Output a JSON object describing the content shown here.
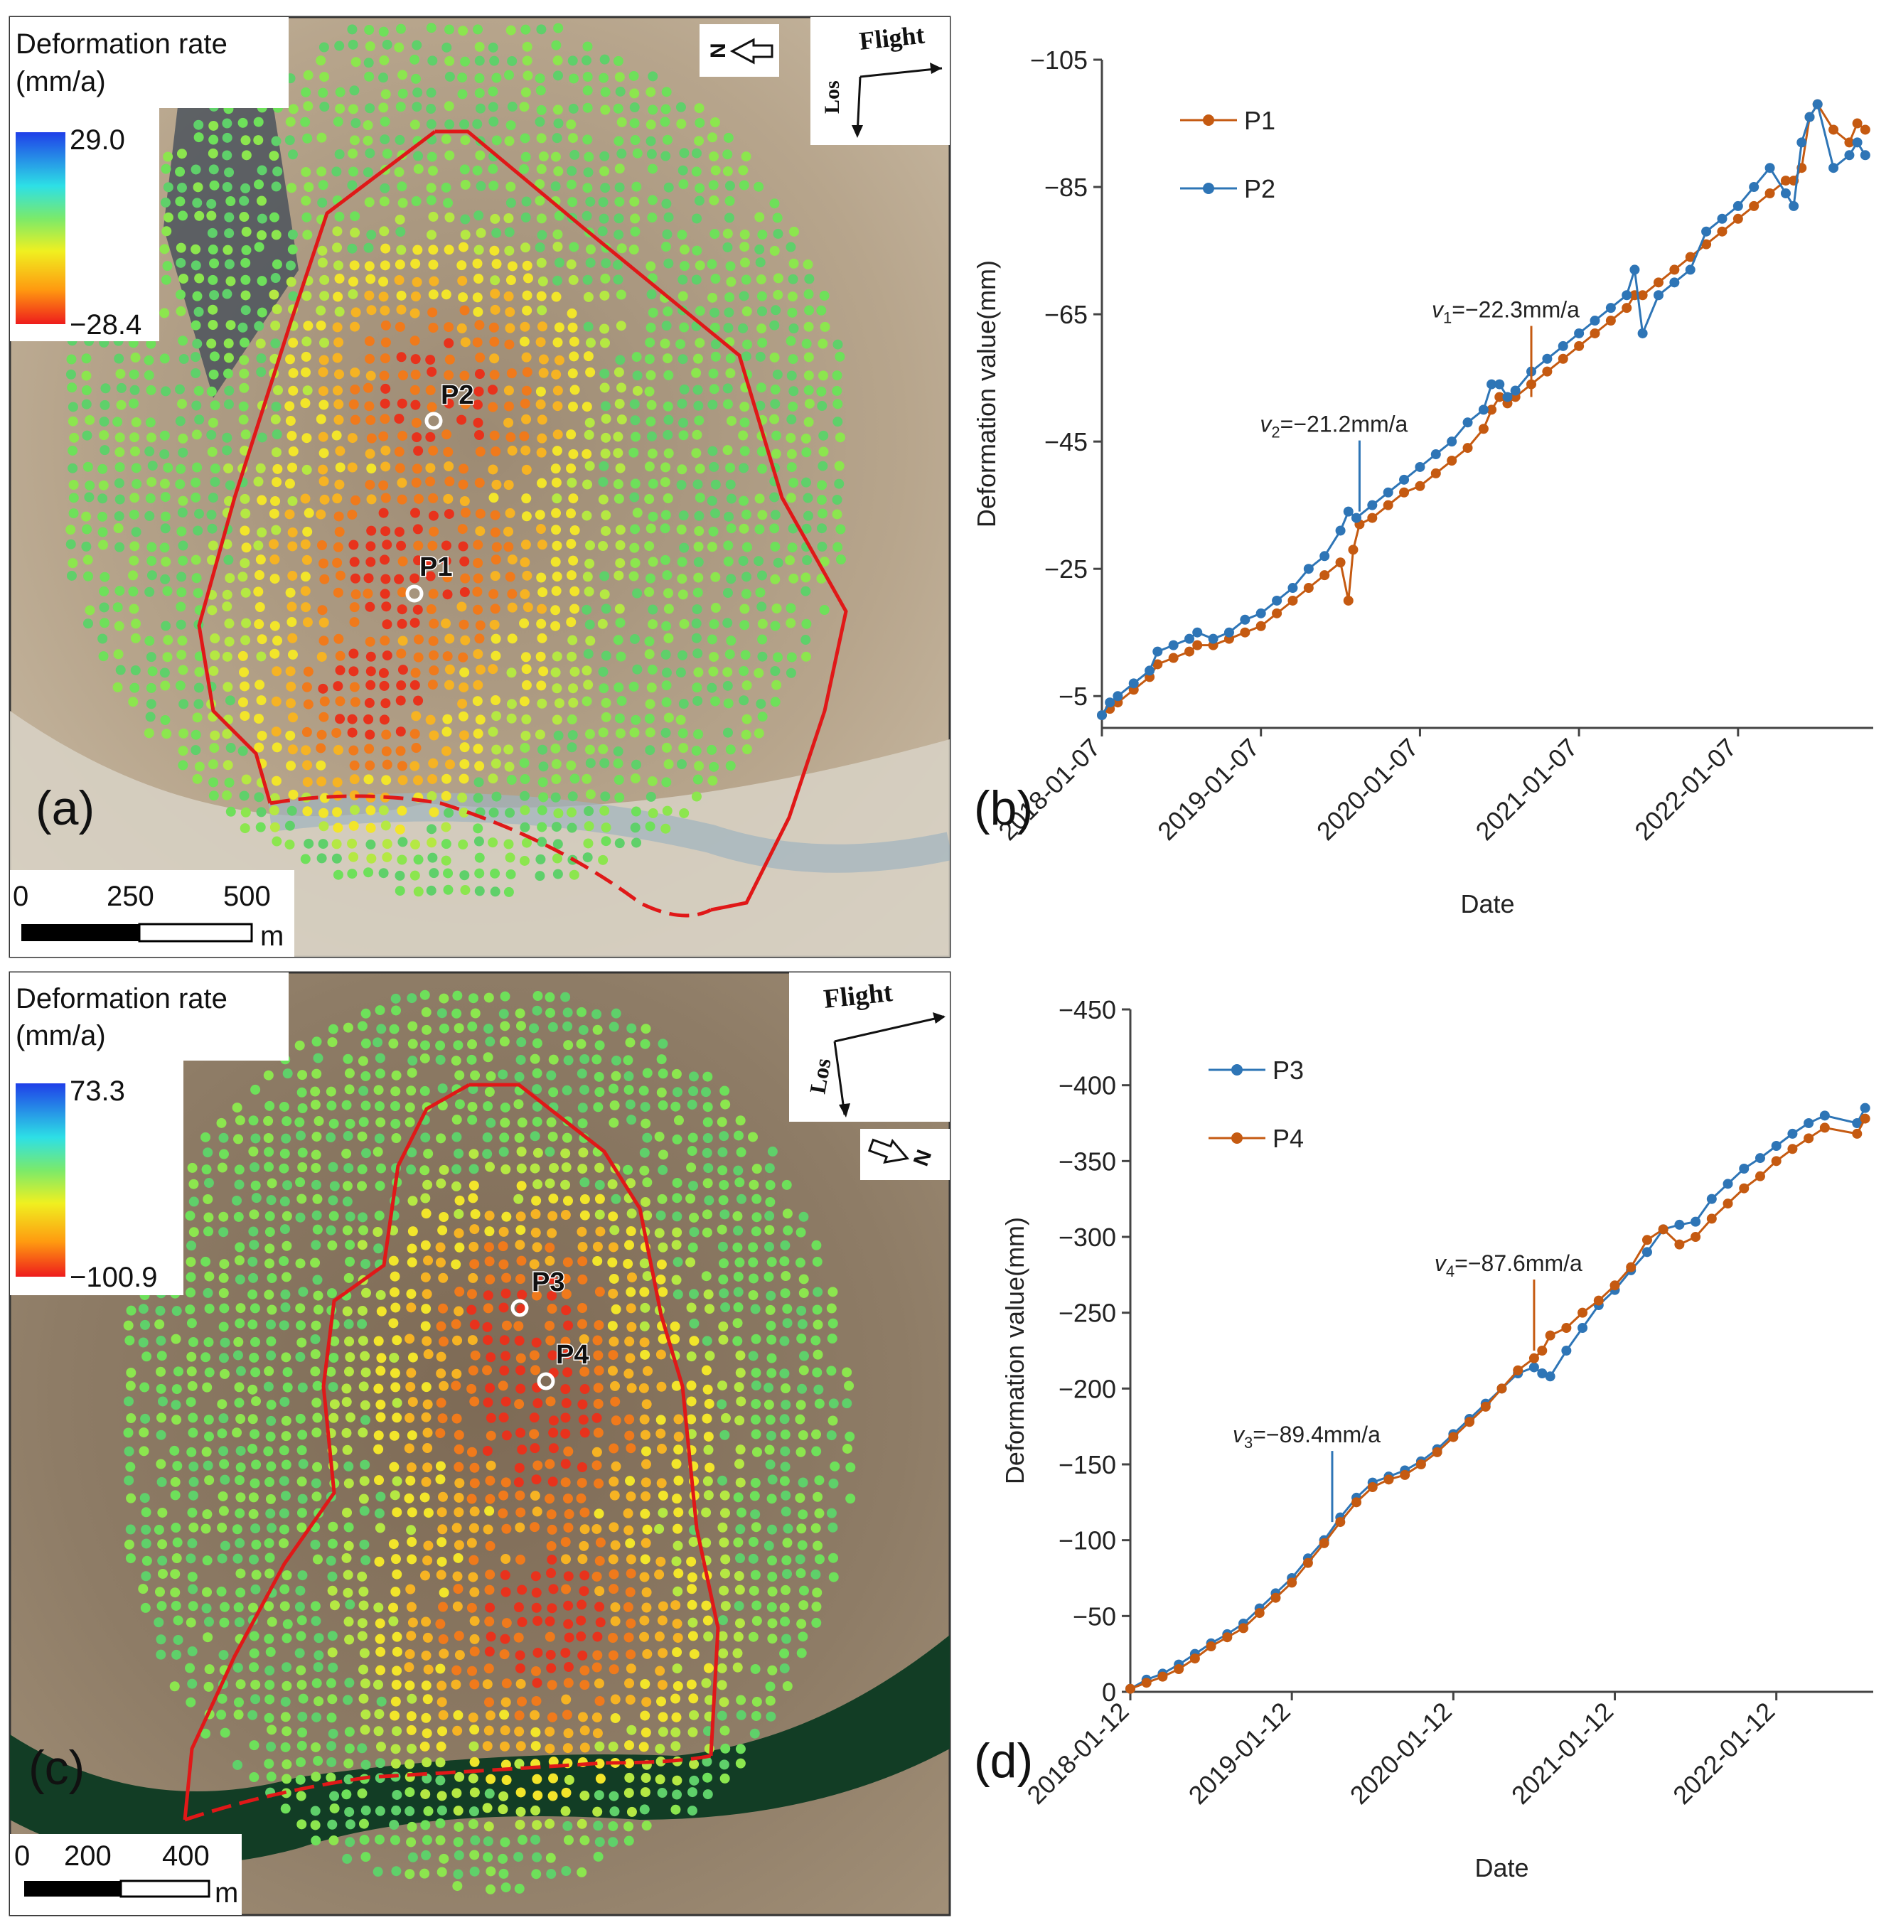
{
  "colors": {
    "p1": "#c55a11",
    "p2": "#2e75b6",
    "p3": "#2e75b6",
    "p4": "#c55a11",
    "boundary": "#e01818",
    "cb_top": "#1f3fe8",
    "cb_mid1": "#2de0e6",
    "cb_mid2": "#7bea6a",
    "cb_mid3": "#f0f020",
    "cb_mid4": "#ff9a10",
    "cb_bottom": "#ee1c1c"
  },
  "panel_a": {
    "label": "(a)",
    "legend_title_1": "Deformation rate",
    "legend_title_2": "(mm/a)",
    "cb_max": "29.0",
    "cb_min": "−28.4",
    "flight_label": "Flight",
    "los_label": "Los",
    "north": "N",
    "scale_0": "0",
    "scale_1": "250",
    "scale_2": "500",
    "scale_unit": "m",
    "point_labels": [
      "P2",
      "P1"
    ]
  },
  "panel_c": {
    "label": "(c)",
    "legend_title_1": "Deformation rate",
    "legend_title_2": "(mm/a)",
    "cb_max": "73.3",
    "cb_min": "−100.9",
    "flight_label": "Flight",
    "los_label": "Los",
    "north": "N",
    "scale_0": "0",
    "scale_1": "200",
    "scale_2": "400",
    "scale_unit": "m",
    "point_labels": [
      "P3",
      "P4"
    ]
  },
  "chart_data": [
    {
      "panel": "(b)",
      "type": "line",
      "xlabel": "Date",
      "ylabel": "Deformation value(mm)",
      "ylim": [
        0,
        -105
      ],
      "yticks": [
        -105,
        -85,
        -65,
        -45,
        -25,
        -5
      ],
      "xticks": [
        "2018-01-07",
        "2019-01-07",
        "2020-01-07",
        "2021-01-07",
        "2022-01-07"
      ],
      "xrange": [
        2018.0,
        2022.85
      ],
      "series": [
        {
          "name": "P1",
          "x": [
            2018.0,
            2018.05,
            2018.1,
            2018.2,
            2018.3,
            2018.35,
            2018.45,
            2018.55,
            2018.6,
            2018.7,
            2018.8,
            2018.9,
            2019.0,
            2019.1,
            2019.2,
            2019.3,
            2019.4,
            2019.5,
            2019.55,
            2019.58,
            2019.62,
            2019.7,
            2019.8,
            2019.9,
            2020.0,
            2020.1,
            2020.2,
            2020.3,
            2020.4,
            2020.45,
            2020.5,
            2020.55,
            2020.6,
            2020.7,
            2020.8,
            2020.9,
            2021.0,
            2021.1,
            2021.2,
            2021.3,
            2021.35,
            2021.4,
            2021.5,
            2021.6,
            2021.7,
            2021.8,
            2021.9,
            2022.0,
            2022.1,
            2022.2,
            2022.3,
            2022.35,
            2022.4,
            2022.45,
            2022.5,
            2022.6,
            2022.7,
            2022.75,
            2022.8
          ],
          "values": [
            -2,
            -3,
            -4,
            -6,
            -8,
            -10,
            -11,
            -12,
            -13,
            -13,
            -14,
            -15,
            -16,
            -18,
            -20,
            -22,
            -24,
            -26,
            -20,
            -28,
            -32,
            -33,
            -35,
            -37,
            -38,
            -40,
            -42,
            -44,
            -47,
            -50,
            -52,
            -51,
            -52,
            -54,
            -56,
            -58,
            -60,
            -62,
            -64,
            -66,
            -68,
            -68,
            -70,
            -72,
            -74,
            -76,
            -78,
            -80,
            -82,
            -84,
            -86,
            -86,
            -88,
            -96,
            -98,
            -94,
            -92,
            -95,
            -94
          ]
        },
        {
          "name": "P2",
          "x": [
            2018.0,
            2018.05,
            2018.1,
            2018.2,
            2018.3,
            2018.35,
            2018.45,
            2018.55,
            2018.6,
            2018.7,
            2018.8,
            2018.9,
            2019.0,
            2019.1,
            2019.2,
            2019.3,
            2019.4,
            2019.5,
            2019.55,
            2019.6,
            2019.7,
            2019.8,
            2019.9,
            2020.0,
            2020.1,
            2020.2,
            2020.3,
            2020.4,
            2020.45,
            2020.5,
            2020.55,
            2020.6,
            2020.7,
            2020.8,
            2020.9,
            2021.0,
            2021.1,
            2021.2,
            2021.3,
            2021.35,
            2021.4,
            2021.5,
            2021.6,
            2021.7,
            2021.8,
            2021.9,
            2022.0,
            2022.1,
            2022.2,
            2022.3,
            2022.35,
            2022.4,
            2022.45,
            2022.5,
            2022.6,
            2022.7,
            2022.75,
            2022.8
          ],
          "values": [
            -2,
            -4,
            -5,
            -7,
            -9,
            -12,
            -13,
            -14,
            -15,
            -14,
            -15,
            -17,
            -18,
            -20,
            -22,
            -25,
            -27,
            -31,
            -34,
            -33,
            -35,
            -37,
            -39,
            -41,
            -43,
            -45,
            -48,
            -50,
            -54,
            -54,
            -52,
            -53,
            -56,
            -58,
            -60,
            -62,
            -64,
            -66,
            -68,
            -72,
            -62,
            -68,
            -70,
            -72,
            -78,
            -80,
            -82,
            -85,
            -88,
            -84,
            -82,
            -92,
            -96,
            -98,
            -88,
            -90,
            -92,
            -90
          ]
        }
      ],
      "annotations": [
        {
          "text_italic": "v",
          "sub": "1",
          "text": "=−22.3mm/a",
          "x": 2020.7,
          "y": -52
        },
        {
          "text_italic": "v",
          "sub": "2",
          "text": "=−21.2mm/a",
          "x": 2019.62,
          "y": -34
        }
      ]
    },
    {
      "panel": "(d)",
      "type": "line",
      "xlabel": "Date",
      "ylabel": "Deformation value(mm)",
      "ylim": [
        0,
        -450
      ],
      "yticks": [
        -450,
        -400,
        -350,
        -300,
        -250,
        -200,
        -150,
        -100,
        -50,
        0
      ],
      "xticks": [
        "2018-01-12",
        "2019-01-12",
        "2020-01-12",
        "2021-01-12",
        "2022-01-12"
      ],
      "xrange": [
        2018.0,
        2022.6
      ],
      "series": [
        {
          "name": "P3",
          "x": [
            2018.0,
            2018.1,
            2018.2,
            2018.3,
            2018.4,
            2018.5,
            2018.6,
            2018.7,
            2018.8,
            2018.9,
            2019.0,
            2019.1,
            2019.2,
            2019.3,
            2019.4,
            2019.5,
            2019.6,
            2019.7,
            2019.8,
            2019.9,
            2020.0,
            2020.1,
            2020.2,
            2020.3,
            2020.4,
            2020.5,
            2020.55,
            2020.6,
            2020.7,
            2020.8,
            2020.9,
            2021.0,
            2021.1,
            2021.2,
            2021.3,
            2021.4,
            2021.5,
            2021.6,
            2021.7,
            2021.8,
            2021.9,
            2022.0,
            2022.1,
            2022.2,
            2022.3,
            2022.5,
            2022.55
          ],
          "values": [
            -2,
            -8,
            -12,
            -18,
            -25,
            -32,
            -38,
            -45,
            -55,
            -65,
            -75,
            -88,
            -100,
            -115,
            -128,
            -138,
            -142,
            -146,
            -152,
            -160,
            -170,
            -180,
            -190,
            -200,
            -210,
            -214,
            -210,
            -208,
            -225,
            -240,
            -255,
            -265,
            -278,
            -290,
            -305,
            -308,
            -310,
            -325,
            -335,
            -345,
            -352,
            -360,
            -368,
            -375,
            -380,
            -375,
            -385
          ]
        },
        {
          "name": "P4",
          "x": [
            2018.0,
            2018.1,
            2018.2,
            2018.3,
            2018.4,
            2018.5,
            2018.6,
            2018.7,
            2018.8,
            2018.9,
            2019.0,
            2019.1,
            2019.2,
            2019.3,
            2019.4,
            2019.5,
            2019.6,
            2019.7,
            2019.8,
            2019.9,
            2020.0,
            2020.1,
            2020.2,
            2020.3,
            2020.4,
            2020.5,
            2020.55,
            2020.6,
            2020.7,
            2020.8,
            2020.9,
            2021.0,
            2021.1,
            2021.2,
            2021.3,
            2021.4,
            2021.5,
            2021.6,
            2021.7,
            2021.8,
            2021.9,
            2022.0,
            2022.1,
            2022.2,
            2022.3,
            2022.5,
            2022.55
          ],
          "values": [
            -2,
            -6,
            -10,
            -15,
            -22,
            -30,
            -36,
            -42,
            -52,
            -62,
            -72,
            -85,
            -98,
            -112,
            -125,
            -135,
            -140,
            -143,
            -150,
            -158,
            -168,
            -178,
            -188,
            -200,
            -212,
            -220,
            -225,
            -235,
            -240,
            -250,
            -258,
            -268,
            -280,
            -298,
            -305,
            -295,
            -300,
            -312,
            -322,
            -332,
            -340,
            -350,
            -358,
            -365,
            -372,
            -368,
            -378
          ]
        }
      ],
      "annotations": [
        {
          "text_italic": "v",
          "sub": "4",
          "text": "=−87.6mm/a",
          "x": 2020.5,
          "y": -225
        },
        {
          "text_italic": "v",
          "sub": "3",
          "text": "=−89.4mm/a",
          "x": 2019.25,
          "y": -112
        }
      ]
    }
  ]
}
